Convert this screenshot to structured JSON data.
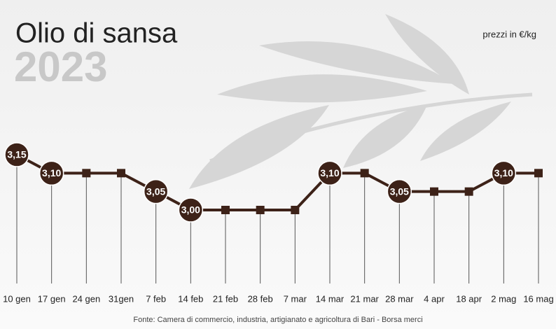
{
  "chart_data": {
    "type": "line",
    "title": "Olio di sansa",
    "subtitle": "2023",
    "unit_note": "prezzi in €/kg",
    "source": "Fonte: Camera di commercio, industria, artigianato e agricoltura di Bari - Borsa merci",
    "categories": [
      "10 gen",
      "17 gen",
      "24 gen",
      "31gen",
      "7 feb",
      "14 feb",
      "21 feb",
      "28 feb",
      "7 mar",
      "14 mar",
      "21 mar",
      "28 mar",
      "4 apr",
      "18 apr",
      "2 mag",
      "16 mag"
    ],
    "values": [
      3.15,
      3.1,
      3.1,
      3.1,
      3.05,
      3.0,
      3.0,
      3.0,
      3.0,
      3.1,
      3.1,
      3.05,
      3.05,
      3.05,
      3.1,
      3.1
    ],
    "value_labels": [
      "3,15",
      "3,10",
      null,
      null,
      "3,05",
      "3,00",
      null,
      null,
      null,
      "3,10",
      null,
      "3,05",
      null,
      null,
      "3,10",
      null
    ],
    "color": "#3d2218"
  }
}
